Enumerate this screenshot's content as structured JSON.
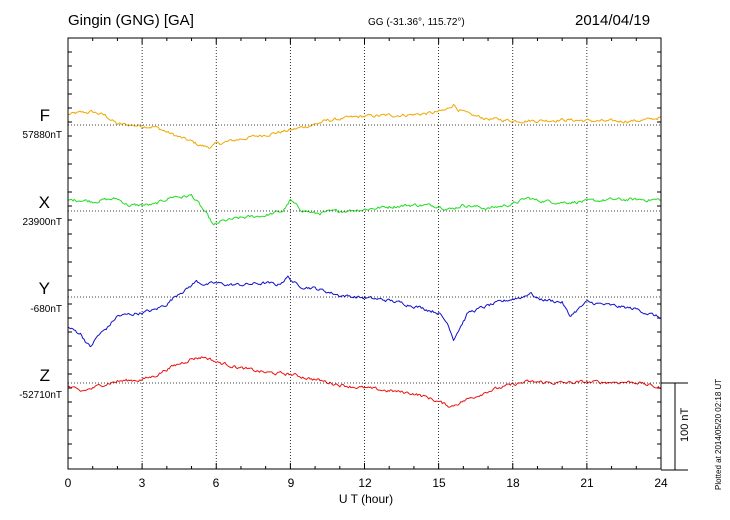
{
  "header": {
    "station": "Gingin (GNG)  [GA]",
    "coords": "GG (-31.36°, 115.72°)",
    "date": "2014/04/19"
  },
  "footer": {
    "plotted": "Plotted at 2014/05/20 02:18 UT"
  },
  "chart_data": {
    "type": "line",
    "title": "Gingin (GNG) [GA] 2014/04/19",
    "xlabel": "U T (hour)",
    "ylabel": "",
    "xlim": [
      0,
      24
    ],
    "x_ticks": [
      "0",
      "3",
      "6",
      "9",
      "12",
      "15",
      "18",
      "21",
      "24"
    ],
    "scale_bar_nT": 100,
    "scale_label": "100 nT",
    "grid": true,
    "series": [
      {
        "name": "F",
        "label": "F",
        "baseline": "57880nT",
        "baseline_nT": 57880,
        "color": "#f0a800",
        "x": [
          0,
          0.5,
          1,
          1.5,
          2,
          2.5,
          3,
          3.5,
          4,
          4.5,
          5,
          5.3,
          5.6,
          5.8,
          6,
          6.5,
          7,
          8,
          9,
          10,
          10.5,
          11,
          12,
          13,
          14,
          14.8,
          15.3,
          15.6,
          15.8,
          16.2,
          17,
          18,
          19,
          20,
          21,
          22,
          23,
          23.5,
          24
        ],
        "values": [
          12,
          14,
          15,
          11,
          1,
          0,
          -1,
          -2,
          -8,
          -14,
          -19,
          -23,
          -25,
          -25,
          -22,
          -19,
          -16,
          -11,
          -6,
          1,
          5,
          7,
          10,
          11,
          12,
          14,
          17,
          24,
          18,
          12,
          7,
          5,
          5,
          6,
          5,
          4,
          5,
          6,
          9
        ]
      },
      {
        "name": "X",
        "label": "X",
        "baseline": "23900nT",
        "baseline_nT": 23900,
        "color": "#22dd22",
        "x": [
          0,
          0.5,
          1,
          1.5,
          2,
          2.5,
          3,
          3.5,
          4,
          4.3,
          4.6,
          5,
          5.3,
          5.5,
          5.7,
          5.9,
          6.2,
          7,
          8,
          8.7,
          9,
          9.4,
          10,
          11,
          12,
          13,
          14,
          15,
          15.5,
          16,
          17,
          18,
          18.6,
          19,
          20,
          21,
          22,
          23,
          24
        ],
        "values": [
          12,
          13,
          11,
          13,
          14,
          6,
          7,
          7,
          14,
          17,
          16,
          18,
          8,
          0,
          -8,
          -17,
          -12,
          -8,
          -5,
          0,
          12,
          2,
          -3,
          0,
          2,
          5,
          7,
          6,
          2,
          7,
          3,
          8,
          15,
          12,
          10,
          11,
          13,
          13,
          13
        ]
      },
      {
        "name": "Y",
        "label": "Y",
        "baseline": "-680nT",
        "baseline_nT": -680,
        "color": "#1111cc",
        "x": [
          0,
          0.5,
          0.9,
          1.2,
          1.6,
          2,
          2.5,
          3,
          3.5,
          4,
          4.5,
          4.8,
          5.2,
          5.6,
          6,
          6.5,
          7,
          8,
          8.5,
          8.9,
          9.3,
          10,
          11,
          12,
          13,
          14,
          15,
          15.4,
          15.6,
          15.8,
          16.2,
          17,
          18,
          18.4,
          18.7,
          19,
          20,
          20.3,
          21,
          22,
          23,
          24
        ],
        "values": [
          -35,
          -42,
          -58,
          -45,
          -35,
          -22,
          -20,
          -18,
          -15,
          -8,
          5,
          9,
          18,
          14,
          16,
          14,
          14,
          16,
          14,
          23,
          13,
          10,
          2,
          -1,
          -4,
          -10,
          -18,
          -32,
          -48,
          -38,
          -18,
          -10,
          -2,
          0,
          5,
          -2,
          -6,
          -22,
          -6,
          -10,
          -14,
          -24
        ]
      },
      {
        "name": "Z",
        "label": "Z",
        "baseline": "-52710nT",
        "baseline_nT": -52710,
        "color": "#ee1111",
        "x": [
          0,
          0.5,
          1,
          1.5,
          2,
          3,
          3.5,
          4,
          4.5,
          5,
          5.5,
          5.8,
          6,
          6.5,
          7,
          8,
          9,
          10,
          11,
          12,
          13,
          14,
          14.7,
          15.2,
          15.5,
          15.8,
          16.5,
          17,
          18,
          18.5,
          19,
          20,
          21,
          22,
          23,
          24
        ],
        "values": [
          -4,
          -10,
          -6,
          -1,
          2,
          4,
          8,
          16,
          22,
          28,
          30,
          27,
          24,
          21,
          17,
          12,
          10,
          4,
          -2,
          -6,
          -9,
          -12,
          -18,
          -24,
          -27,
          -23,
          -15,
          -9,
          -2,
          1,
          1,
          0,
          1,
          1,
          1,
          -6
        ]
      }
    ]
  }
}
